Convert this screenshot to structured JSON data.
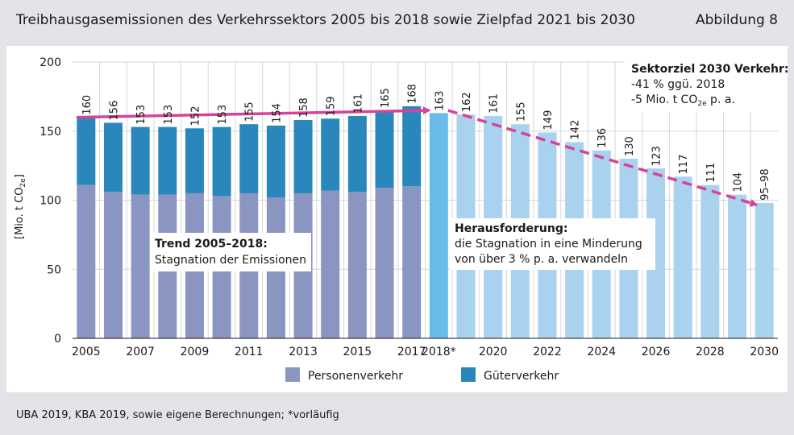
{
  "header": {
    "title": "Treibhausgasemissionen des Verkehrssektors 2005 bis 2018 sowie Zielpfad 2021 bis 2030",
    "figure_label": "Abbildung 8"
  },
  "footer": {
    "source": "UBA 2019, KBA 2019, sowie eigene Berechnungen; *vorläufig"
  },
  "colors": {
    "personenverkehr": "#8a95c2",
    "gueterverkehr": "#2a87bb",
    "year_2018": "#6abce8",
    "target_path": "#a9d2ef",
    "arrow": "#d6449a",
    "grid": "#d4d6dc"
  },
  "annotations": {
    "trend_title": "Trend 2005–2018:",
    "trend_text": "Stagnation der Emissionen",
    "challenge_title": "Herausforderung:",
    "challenge_line1": "die Stagnation in eine Minderung",
    "challenge_line2": "von über 3 % p. a. verwandeln",
    "goal_title": "Sektorziel 2030 Verkehr:",
    "goal_line1": "-41 % ggü. 2018",
    "goal_line2_a": "-5 Mio. t CO",
    "goal_line2_sub": "2e",
    "goal_line2_b": " p. a."
  },
  "chart_data": {
    "type": "bar",
    "categories": [
      "2005",
      "2006",
      "2007",
      "2008",
      "2009",
      "2010",
      "2011",
      "2012",
      "2013",
      "2014",
      "2015",
      "2016",
      "2017",
      "2018*",
      "2019",
      "2020",
      "2021",
      "2022",
      "2023",
      "2024",
      "2025",
      "2026",
      "2027",
      "2028",
      "2029",
      "2030"
    ],
    "x_tick_labels": [
      "2005",
      "2007",
      "2009",
      "2011",
      "2013",
      "2015",
      "2017",
      "2018*",
      "2020",
      "2022",
      "2024",
      "2026",
      "2028",
      "2030"
    ],
    "series": [
      {
        "name": "Personenverkehr",
        "values": [
          111,
          106,
          104,
          104,
          105,
          103,
          105,
          102,
          105,
          107,
          106,
          109,
          110,
          null,
          null,
          null,
          null,
          null,
          null,
          null,
          null,
          null,
          null,
          null,
          null,
          null
        ]
      },
      {
        "name": "Güterverkehr",
        "values": [
          49,
          50,
          49,
          49,
          47,
          50,
          50,
          52,
          53,
          52,
          55,
          56,
          58,
          null,
          null,
          null,
          null,
          null,
          null,
          null,
          null,
          null,
          null,
          null,
          null,
          null
        ]
      }
    ],
    "totals": [
      160,
      156,
      153,
      153,
      152,
      153,
      155,
      154,
      158,
      159,
      161,
      165,
      168,
      163,
      162,
      161,
      155,
      149,
      142,
      136,
      130,
      123,
      117,
      111,
      104,
      98
    ],
    "total_labels": [
      "160",
      "156",
      "153",
      "153",
      "152",
      "153",
      "155",
      "154",
      "158",
      "159",
      "161",
      "165",
      "168",
      "163",
      "162",
      "161",
      "155",
      "149",
      "142",
      "136",
      "130",
      "123",
      "117",
      "111",
      "104",
      "95–98"
    ],
    "ylabel_main": "[Mio. t CO",
    "ylabel_sub": "2e",
    "ylabel_end": "]",
    "yticks": [
      0,
      50,
      100,
      150,
      200
    ],
    "ylim": [
      0,
      200
    ],
    "grid": true,
    "legend_position": "bottom",
    "trend_line": {
      "from": [
        "2005",
        160
      ],
      "to": [
        "2018*",
        165
      ]
    },
    "target_line": {
      "from": [
        "2018*",
        165
      ],
      "to": [
        "2030",
        97
      ]
    }
  }
}
